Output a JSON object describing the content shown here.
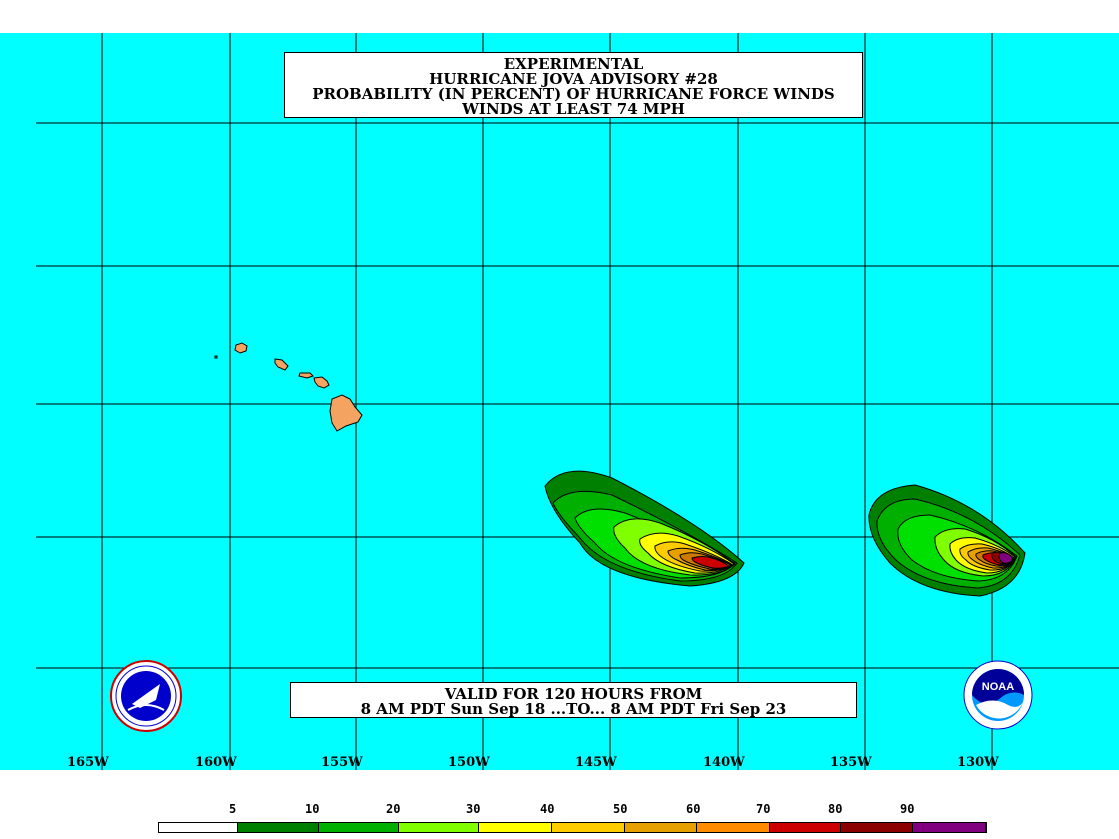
{
  "title": {
    "line1": "EXPERIMENTAL",
    "line2": "HURRICANE JOVA ADVISORY #28",
    "line3": "PROBABILITY (IN PERCENT) OF HURRICANE FORCE WINDS",
    "line4": "WINDS AT LEAST 74 MPH"
  },
  "valid": {
    "line1": "VALID FOR 120 HOURS FROM",
    "line2": "8 AM PDT Sun Sep 18 ...TO... 8 AM PDT Fri Sep 23"
  },
  "longitude_labels": [
    "165W",
    "160W",
    "155W",
    "150W",
    "145W",
    "140W",
    "135W",
    "130W"
  ],
  "legend": {
    "ticks": [
      "5",
      "10",
      "20",
      "30",
      "40",
      "50",
      "60",
      "70",
      "80",
      "90"
    ],
    "colors": [
      "#ffffff",
      "#008000",
      "#00b000",
      "#00e000",
      "#7fff00",
      "#ffff00",
      "#ffcc00",
      "#e6a000",
      "#cc7a00",
      "#ff8c00",
      "#cc0000",
      "#8b0000",
      "#800080"
    ]
  },
  "logos": {
    "left": "nws-logo",
    "right": "noaa-logo",
    "right_text": "NOAA"
  },
  "colors": {
    "ocean": "#00ffff",
    "land": "#f4a460"
  }
}
